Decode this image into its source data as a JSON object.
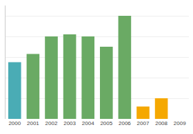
{
  "chart_data": {
    "type": "bar",
    "categories": [
      "2000",
      "2001",
      "2002",
      "2003",
      "2004",
      "2005",
      "2006",
      "2007",
      "2008",
      "2009"
    ],
    "values": [
      55,
      63,
      80,
      82,
      80,
      70,
      100,
      12,
      20,
      0
    ],
    "colors": [
      "#4aacb5",
      "#6aaa64",
      "#6aaa64",
      "#6aaa64",
      "#6aaa64",
      "#6aaa64",
      "#6aaa64",
      "#f5a800",
      "#f5a800",
      "#f5a800"
    ],
    "ylim": [
      0,
      110
    ],
    "yticks": [
      0,
      20,
      40,
      60,
      80,
      100
    ],
    "grid": true,
    "tick_labels": "x"
  }
}
